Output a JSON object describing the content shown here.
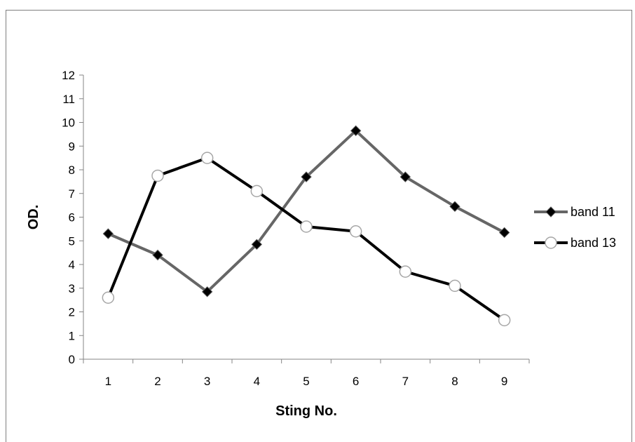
{
  "chart_data": {
    "type": "line",
    "title": "",
    "xlabel": "Sting No.",
    "ylabel": "OD.",
    "categories": [
      "1",
      "2",
      "3",
      "4",
      "5",
      "6",
      "7",
      "8",
      "9"
    ],
    "ylim": [
      0,
      12
    ],
    "yticks": [
      0,
      1,
      2,
      3,
      4,
      5,
      6,
      7,
      8,
      9,
      10,
      11,
      12
    ],
    "grid": false,
    "legend_position": "right",
    "series": [
      {
        "name": "band 11",
        "values": [
          5.3,
          4.4,
          2.85,
          4.85,
          7.7,
          9.65,
          7.7,
          6.45,
          5.35
        ],
        "color": "#666666",
        "marker": "diamond",
        "marker_color": "#000000"
      },
      {
        "name": "band 13",
        "values": [
          2.6,
          7.75,
          8.5,
          7.1,
          5.6,
          5.4,
          3.7,
          3.1,
          1.65
        ],
        "color": "#000000",
        "marker": "circle",
        "marker_color": "#ffffff"
      }
    ]
  }
}
